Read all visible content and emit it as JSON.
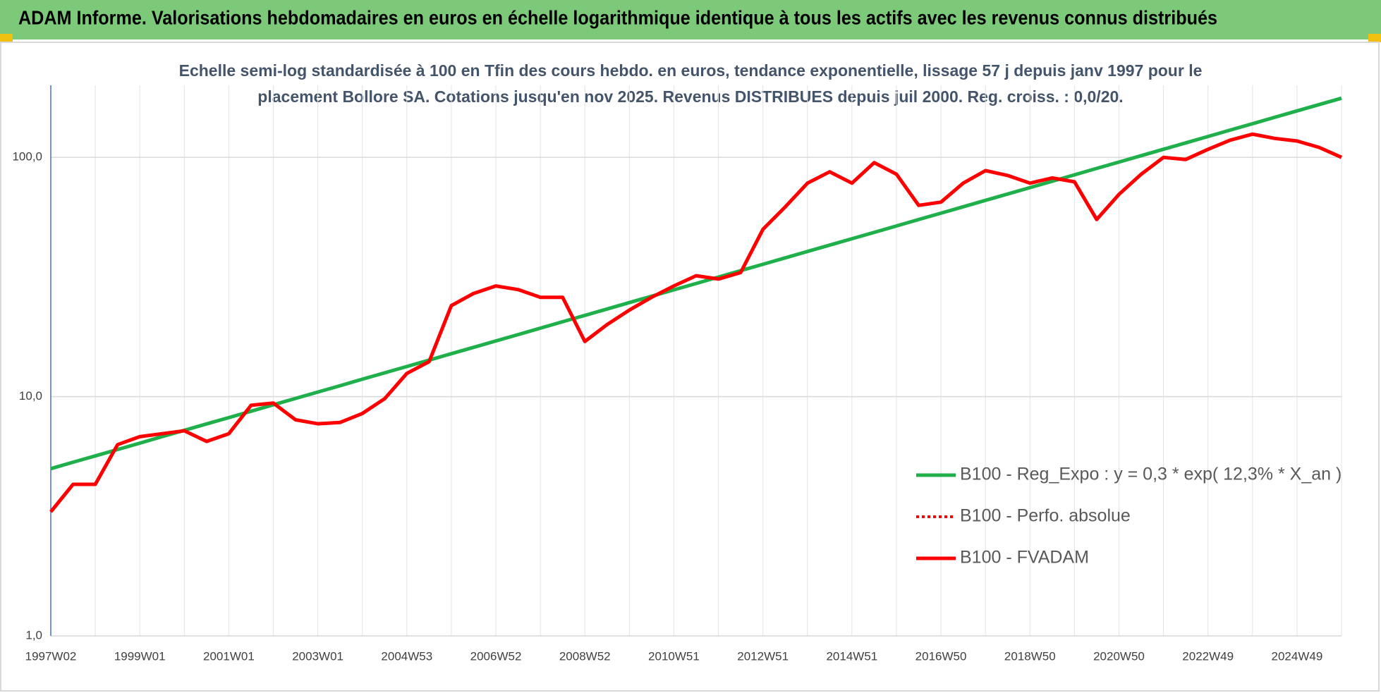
{
  "header": {
    "title": "ADAM Informe. Valorisations hebdomadaires en euros en échelle logarithmique identique à tous les actifs avec les revenus connus distribués"
  },
  "chart_data": {
    "type": "line",
    "title": [
      "Echelle semi-log standardisée à 100 en Tfin des cours hebdo. en euros, tendance exponentielle, lissage 57 j depuis janv 1997 pour le",
      "placement Bollore SA. Cotations jusqu'en nov 2025. Revenus DISTRIBUES depuis juil 2000. Reg. croiss. : 0,0/20."
    ],
    "categories": [
      "1997W02",
      null,
      null,
      null,
      "1999W01",
      null,
      null,
      null,
      "2001W01",
      null,
      null,
      null,
      "2003W01",
      null,
      null,
      null,
      "2004W53",
      null,
      null,
      null,
      "2006W52",
      null,
      null,
      null,
      "2008W52",
      null,
      null,
      null,
      "2010W51",
      null,
      null,
      null,
      "2012W51",
      null,
      null,
      null,
      "2014W51",
      null,
      null,
      null,
      "2016W50",
      null,
      null,
      null,
      "2018W50",
      null,
      null,
      null,
      "2020W50",
      null,
      null,
      null,
      "2022W49",
      null,
      null,
      null,
      "2024W49",
      null,
      null
    ],
    "series": [
      {
        "name": "B100 - Reg_Expo : y = 0,3 * exp( 12,3% *  X_an )",
        "color": "#1fb04b",
        "style": "solid",
        "values": [
          5.0,
          5.32,
          5.65,
          6.01,
          6.39,
          6.8,
          7.23,
          7.69,
          8.17,
          8.69,
          9.24,
          9.83,
          10.45,
          11.11,
          11.82,
          12.57,
          13.36,
          14.21,
          15.11,
          16.07,
          17.09,
          18.17,
          19.32,
          20.55,
          21.85,
          23.24,
          24.71,
          26.28,
          27.94,
          29.71,
          31.6,
          33.6,
          35.73,
          38.0,
          40.41,
          42.97,
          45.69,
          48.59,
          51.67,
          54.95,
          58.43,
          62.14,
          66.08,
          70.27,
          74.72,
          79.46,
          84.5,
          89.86,
          95.55,
          101.6,
          108.1,
          114.9,
          122.2,
          130.0,
          138.2,
          147.0,
          156.3,
          166.2,
          176.7
        ]
      },
      {
        "name": "B100 - Perfo. absolue",
        "color": "#ff0000",
        "style": "dotted",
        "values": [
          3.3,
          4.3,
          4.3,
          6.3,
          6.8,
          7.0,
          7.2,
          6.5,
          7.0,
          9.2,
          9.4,
          8.0,
          7.7,
          7.8,
          8.5,
          9.8,
          12.5,
          14,
          24,
          27,
          29,
          28,
          26,
          26,
          17,
          20,
          23,
          26,
          29,
          32,
          31,
          33,
          50,
          62,
          78,
          87,
          78,
          95,
          85,
          63,
          65,
          78,
          88,
          84,
          78,
          82,
          79,
          55,
          70,
          85,
          100,
          98,
          108,
          118,
          125,
          120,
          117,
          110,
          100
        ]
      },
      {
        "name": "B100 - FVADAM",
        "color": "#ff0000",
        "style": "solid",
        "values": [
          3.3,
          4.3,
          4.3,
          6.3,
          6.8,
          7.0,
          7.2,
          6.5,
          7.0,
          9.2,
          9.4,
          8.0,
          7.7,
          7.8,
          8.5,
          9.8,
          12.5,
          14,
          24,
          27,
          29,
          28,
          26,
          26,
          17,
          20,
          23,
          26,
          29,
          32,
          31,
          33,
          50,
          62,
          78,
          87,
          78,
          95,
          85,
          63,
          65,
          78,
          88,
          84,
          78,
          82,
          79,
          55,
          70,
          85,
          100,
          98,
          108,
          118,
          125,
          120,
          117,
          110,
          100
        ]
      }
    ],
    "yscale": "log",
    "ylim": [
      1,
      200
    ],
    "yticks": [
      {
        "value": 1,
        "label": "1,0"
      },
      {
        "value": 10,
        "label": "10,0"
      },
      {
        "value": 100,
        "label": "100,0"
      }
    ],
    "grid": true,
    "legend": "lower right"
  }
}
